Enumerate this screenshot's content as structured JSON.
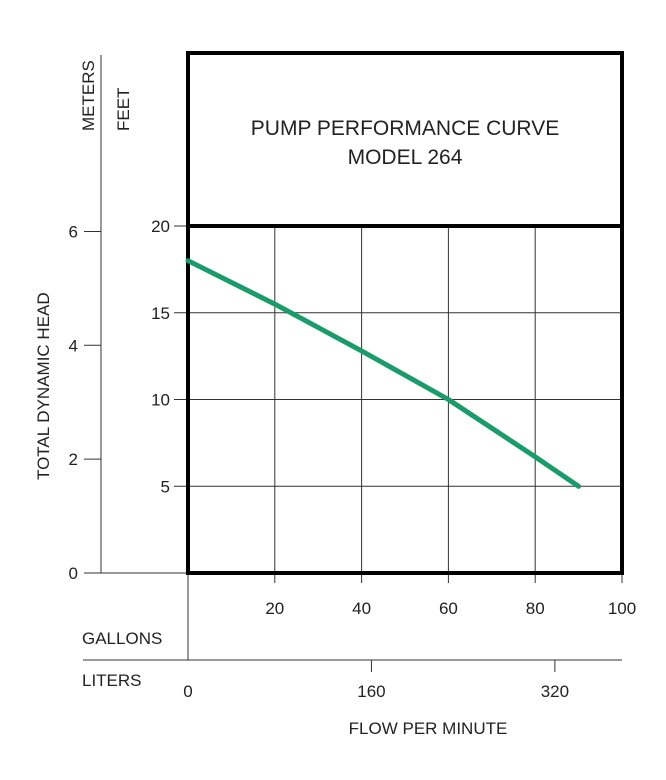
{
  "chart_data": {
    "type": "line",
    "title": "PUMP PERFORMANCE CURVE",
    "subtitle": "MODEL 264",
    "xlabel": "FLOW PER MINUTE",
    "ylabel": "TOTAL DYNAMIC HEAD",
    "y_units": {
      "left": "METERS",
      "right": "FEET"
    },
    "x_units": {
      "top": "GALLONS",
      "bottom": "LITERS"
    },
    "xlim": [
      0,
      100
    ],
    "ylim": [
      0,
      20
    ],
    "x_ticks": [
      "20",
      "40",
      "60",
      "80",
      "100"
    ],
    "x_tick_values": [
      20,
      40,
      60,
      80,
      100
    ],
    "feet_ticks": [
      "5",
      "10",
      "15",
      "20"
    ],
    "feet_tick_values": [
      5,
      10,
      15,
      20
    ],
    "meters_ticks": [
      "0",
      "2",
      "4",
      "6"
    ],
    "meters_tick_values": [
      0,
      2,
      4,
      6
    ],
    "liters_ticks": [
      "0",
      "160",
      "320"
    ],
    "liters_tick_values": [
      0,
      160,
      320
    ],
    "grid": true,
    "series": [
      {
        "x": [
          0,
          20,
          40,
          60,
          80,
          90
        ],
        "y": [
          18,
          15.5,
          12.8,
          10,
          6.7,
          5
        ]
      }
    ],
    "line_color": "#1a9b6c"
  }
}
